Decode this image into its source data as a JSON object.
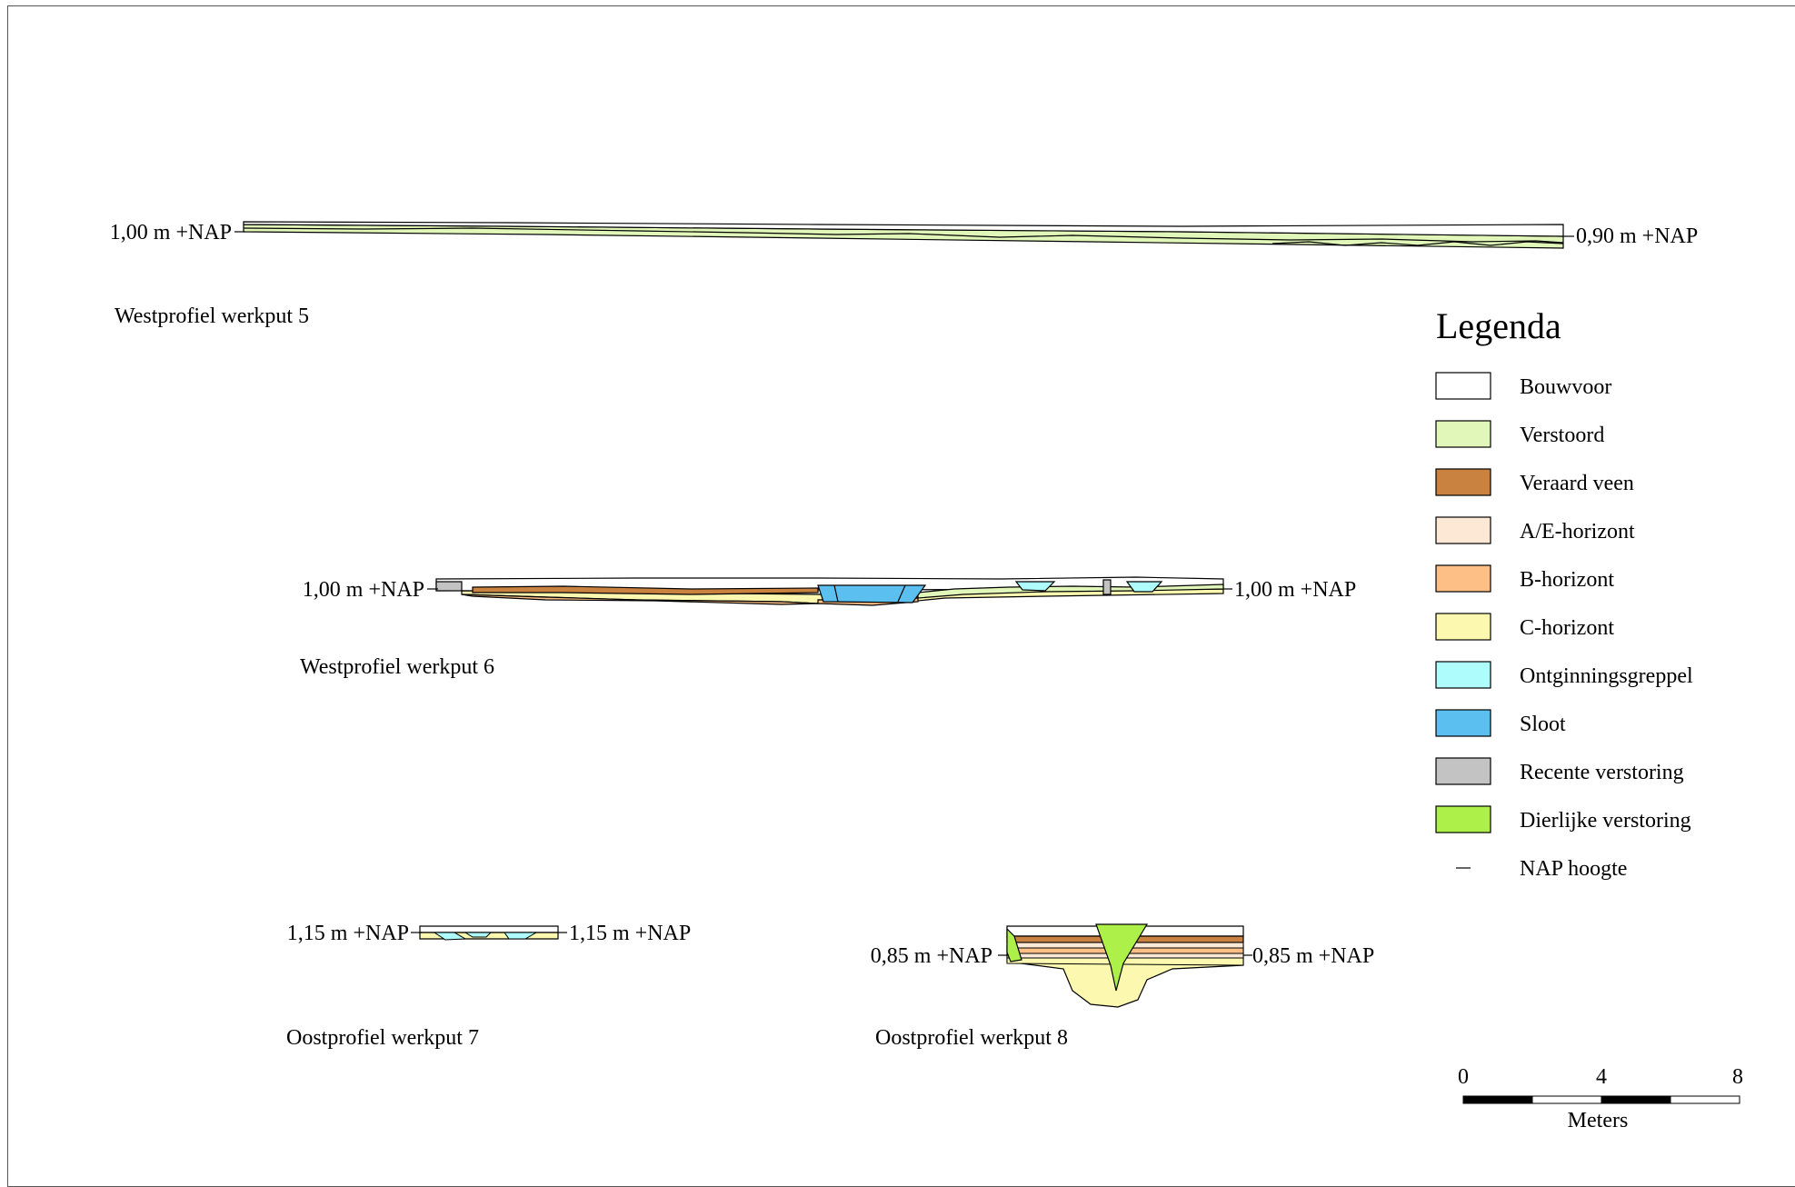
{
  "profiles": [
    {
      "title": "Westprofiel werkput 5",
      "left_level": "1,00 m +NAP",
      "right_level": "0,90 m +NAP"
    },
    {
      "title": "Westprofiel werkput 6",
      "left_level": "1,00 m +NAP",
      "right_level": "1,00 m +NAP"
    },
    {
      "title": "Oostprofiel werkput 7",
      "left_level": "1,15 m +NAP",
      "right_level": "1,15 m +NAP"
    },
    {
      "title": "Oostprofiel werkput 8",
      "left_level": "0,85 m +NAP",
      "right_level": "0,85 m +NAP"
    }
  ],
  "legend": {
    "title": "Legenda",
    "items": [
      {
        "label": "Bouwvoor",
        "color": "#ffffff"
      },
      {
        "label": "Verstoord",
        "color": "#e1f7b9"
      },
      {
        "label": "Veraard veen",
        "color": "#c98240"
      },
      {
        "label": "A/E-horizont",
        "color": "#fde8d6"
      },
      {
        "label": "B-horizont",
        "color": "#fdbf86"
      },
      {
        "label": "C-horizont",
        "color": "#fdf8b0"
      },
      {
        "label": "Ontginningsgreppel",
        "color": "#aefcfb"
      },
      {
        "label": "Sloot",
        "color": "#5bbff0"
      },
      {
        "label": "Recente verstoring",
        "color": "#c3c3c3"
      },
      {
        "label": "Dierlijke verstoring",
        "color": "#aef04a"
      }
    ],
    "nap_item": {
      "label": "NAP hoogte",
      "symbol": "–"
    }
  },
  "scale_bar": {
    "ticks": [
      "0",
      "4",
      "8"
    ],
    "unit": "Meters"
  }
}
